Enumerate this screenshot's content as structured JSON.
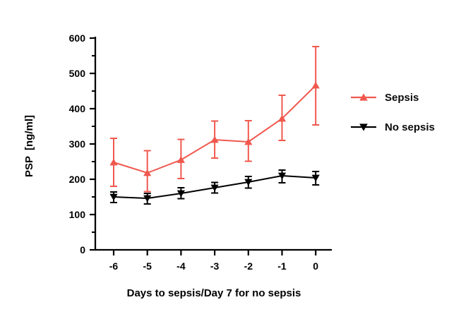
{
  "chart_data": {
    "type": "line",
    "title": "",
    "xlabel": "Days to sepsis/Day 7 for no sepsis",
    "ylabel": "PSP  [ng/ml]",
    "x": [
      -6,
      -5,
      -4,
      -3,
      -2,
      -1,
      0
    ],
    "x_tick_labels": [
      "-6",
      "-5",
      "-4",
      "-3",
      "-2",
      "-1",
      "0"
    ],
    "xlim": [
      -6.55,
      0.47
    ],
    "ylim": [
      0,
      600
    ],
    "y_major_ticks": [
      0,
      100,
      200,
      300,
      400,
      500,
      600
    ],
    "y_minor_ticks": [
      50,
      150,
      250,
      350,
      450,
      550
    ],
    "grid": false,
    "legend_position": "right",
    "axis_color": "#000000",
    "series": [
      {
        "name": "Sepsis",
        "color": "#F0584E",
        "marker": "triangle-up",
        "values": [
          248,
          218,
          255,
          312,
          306,
          372,
          466
        ],
        "err_low": [
          180,
          165,
          202,
          260,
          251,
          310,
          354
        ],
        "err_high": [
          316,
          281,
          313,
          365,
          366,
          438,
          576
        ]
      },
      {
        "name": "No sepsis",
        "color": "#000000",
        "marker": "triangle-down",
        "values": [
          150,
          146,
          160,
          176,
          192,
          210,
          204
        ],
        "err_low": [
          134,
          130,
          145,
          161,
          175,
          190,
          184
        ],
        "err_high": [
          164,
          160,
          176,
          191,
          208,
          226,
          222
        ]
      }
    ]
  }
}
